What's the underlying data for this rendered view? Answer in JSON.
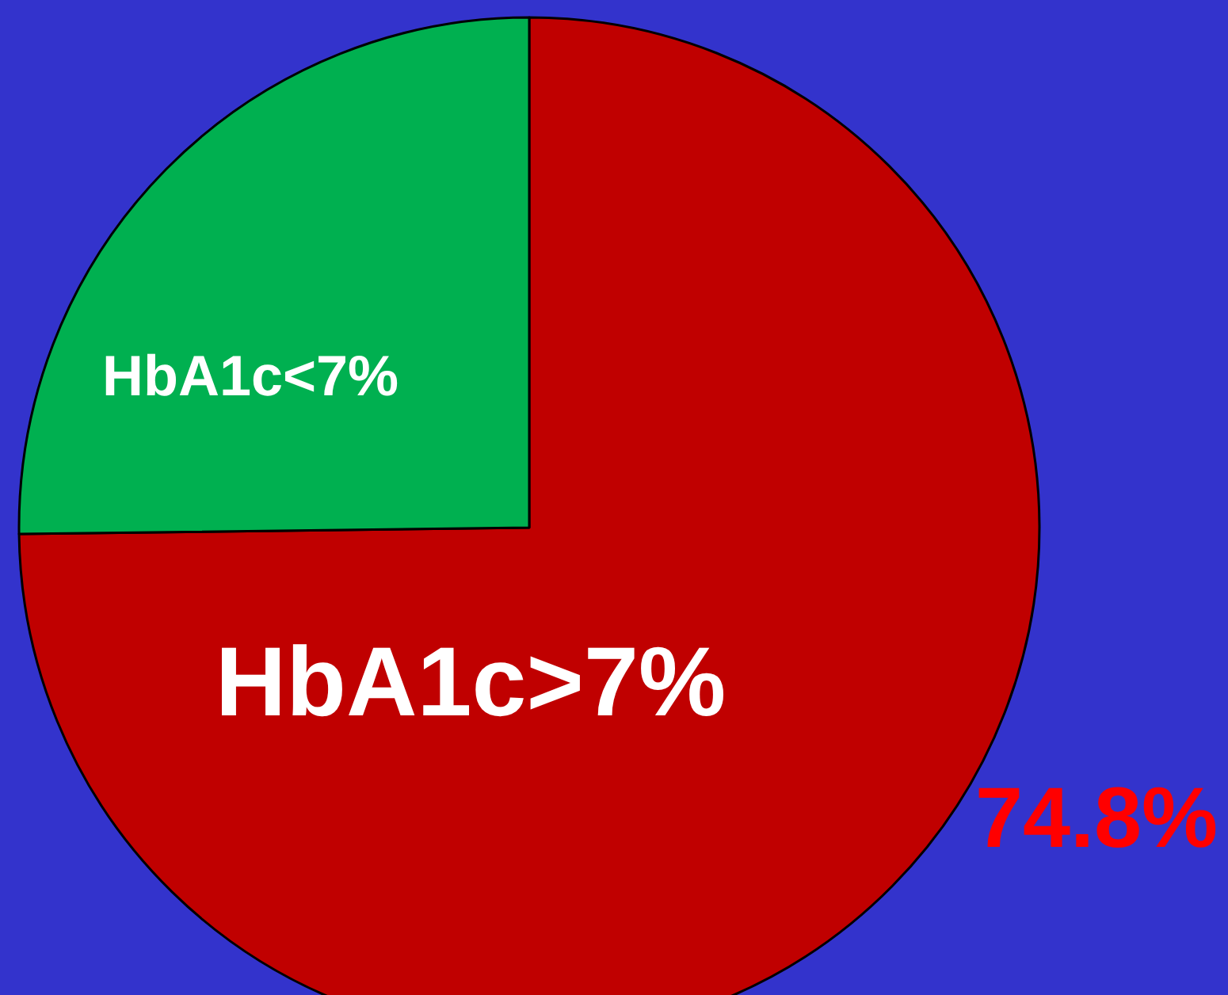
{
  "chart_data": {
    "type": "pie",
    "categories": [
      "HbA1c>7%",
      "HbA1c<7%"
    ],
    "values": [
      74.8,
      25.2
    ],
    "colors": [
      "#c00000",
      "#00b050"
    ],
    "value_labels": [
      "74.8%",
      null
    ]
  }
}
